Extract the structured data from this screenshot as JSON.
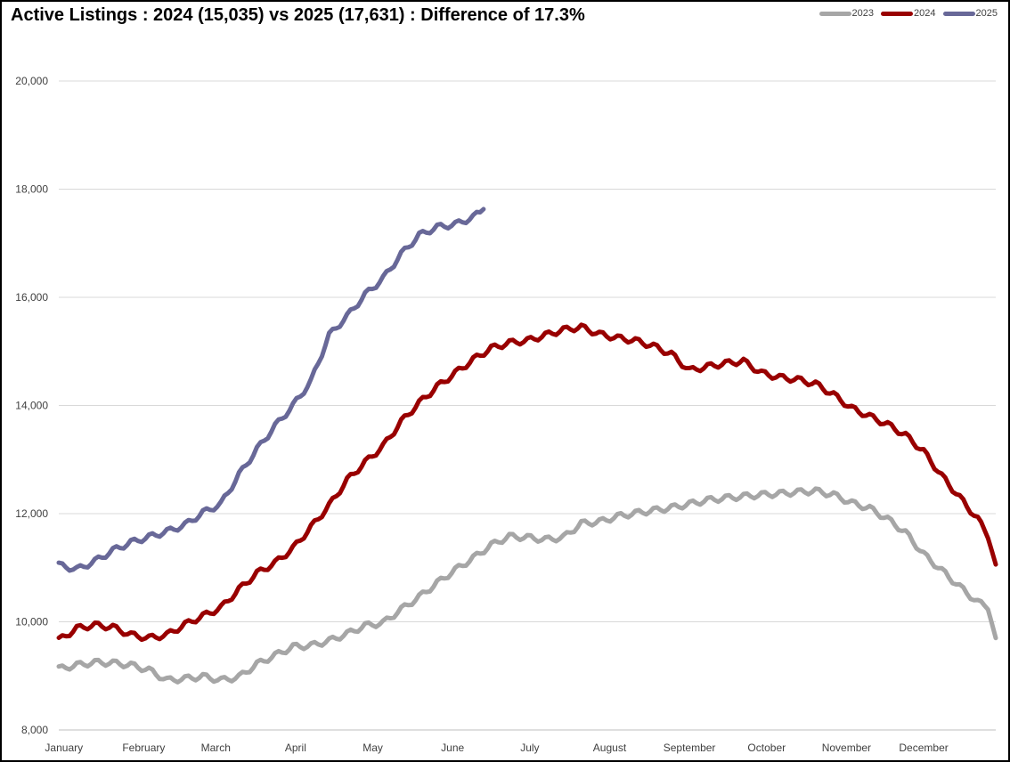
{
  "chart_data": {
    "type": "line",
    "title": "Active Listings : 2024 (15,035) vs 2025 (17,631) : Difference of 17.3%",
    "xlabel": "",
    "ylabel": "",
    "ylim": [
      8000,
      20000
    ],
    "yticks": [
      8000,
      10000,
      12000,
      14000,
      16000,
      18000,
      20000
    ],
    "ytick_labels": [
      "8,000",
      "10,000",
      "12,000",
      "14,000",
      "16,000",
      "18,000",
      "20,000"
    ],
    "categories": [
      "January",
      "February",
      "March",
      "April",
      "May",
      "June",
      "July",
      "August",
      "September",
      "October",
      "November",
      "December"
    ],
    "x_unit": "day of year",
    "grid": true,
    "legend_position": "top-right",
    "series": [
      {
        "name": "2023",
        "color": "#a6a6a6",
        "x": [
          1,
          8,
          15,
          22,
          29,
          36,
          43,
          50,
          57,
          64,
          71,
          78,
          85,
          92,
          99,
          106,
          113,
          120,
          127,
          134,
          141,
          148,
          155,
          162,
          169,
          176,
          183,
          190,
          197,
          204,
          211,
          218,
          225,
          232,
          239,
          246,
          253,
          260,
          267,
          274,
          281,
          288,
          295,
          302,
          309,
          316,
          323,
          330,
          337,
          344,
          351,
          358,
          362,
          365
        ],
        "y": [
          9130,
          9200,
          9250,
          9240,
          9200,
          9110,
          8920,
          8950,
          8990,
          8920,
          8980,
          9220,
          9380,
          9540,
          9560,
          9650,
          9780,
          9930,
          9980,
          10230,
          10460,
          10720,
          10960,
          11180,
          11420,
          11580,
          11560,
          11520,
          11560,
          11820,
          11850,
          11950,
          12010,
          12060,
          12110,
          12180,
          12250,
          12290,
          12320,
          12350,
          12370,
          12400,
          12420,
          12350,
          12200,
          12100,
          11900,
          11650,
          11250,
          10950,
          10650,
          10360,
          10280,
          9700
        ]
      },
      {
        "name": "2024",
        "color": "#990000",
        "x": [
          1,
          8,
          15,
          22,
          29,
          36,
          43,
          50,
          57,
          64,
          71,
          78,
          85,
          92,
          99,
          106,
          113,
          120,
          127,
          134,
          141,
          148,
          155,
          162,
          169,
          176,
          183,
          190,
          197,
          204,
          211,
          218,
          225,
          232,
          239,
          246,
          253,
          260,
          267,
          274,
          281,
          288,
          295,
          302,
          309,
          316,
          323,
          330,
          337,
          344,
          351,
          358,
          362,
          365
        ],
        "y": [
          9660,
          9880,
          9940,
          9900,
          9760,
          9700,
          9760,
          9950,
          10110,
          10260,
          10600,
          10900,
          11090,
          11360,
          11750,
          12150,
          12620,
          12950,
          13250,
          13700,
          14050,
          14350,
          14600,
          14850,
          15060,
          15160,
          15200,
          15300,
          15400,
          15450,
          15320,
          15250,
          15200,
          15100,
          14950,
          14650,
          14720,
          14780,
          14820,
          14600,
          14520,
          14480,
          14400,
          14200,
          13950,
          13800,
          13650,
          13450,
          13150,
          12700,
          12300,
          11900,
          11600,
          11060
        ]
      },
      {
        "name": "2025",
        "color": "#686898",
        "x": [
          1,
          8,
          15,
          22,
          29,
          36,
          43,
          50,
          57,
          64,
          71,
          78,
          85,
          92,
          99,
          106,
          113,
          120,
          127,
          134,
          141,
          148,
          155,
          162,
          166
        ],
        "y": [
          11050,
          10970,
          11120,
          11320,
          11470,
          11570,
          11670,
          11790,
          12020,
          12180,
          12720,
          13190,
          13620,
          14000,
          14450,
          15300,
          15650,
          16050,
          16350,
          16800,
          17150,
          17300,
          17350,
          17480,
          17631
        ]
      }
    ]
  }
}
